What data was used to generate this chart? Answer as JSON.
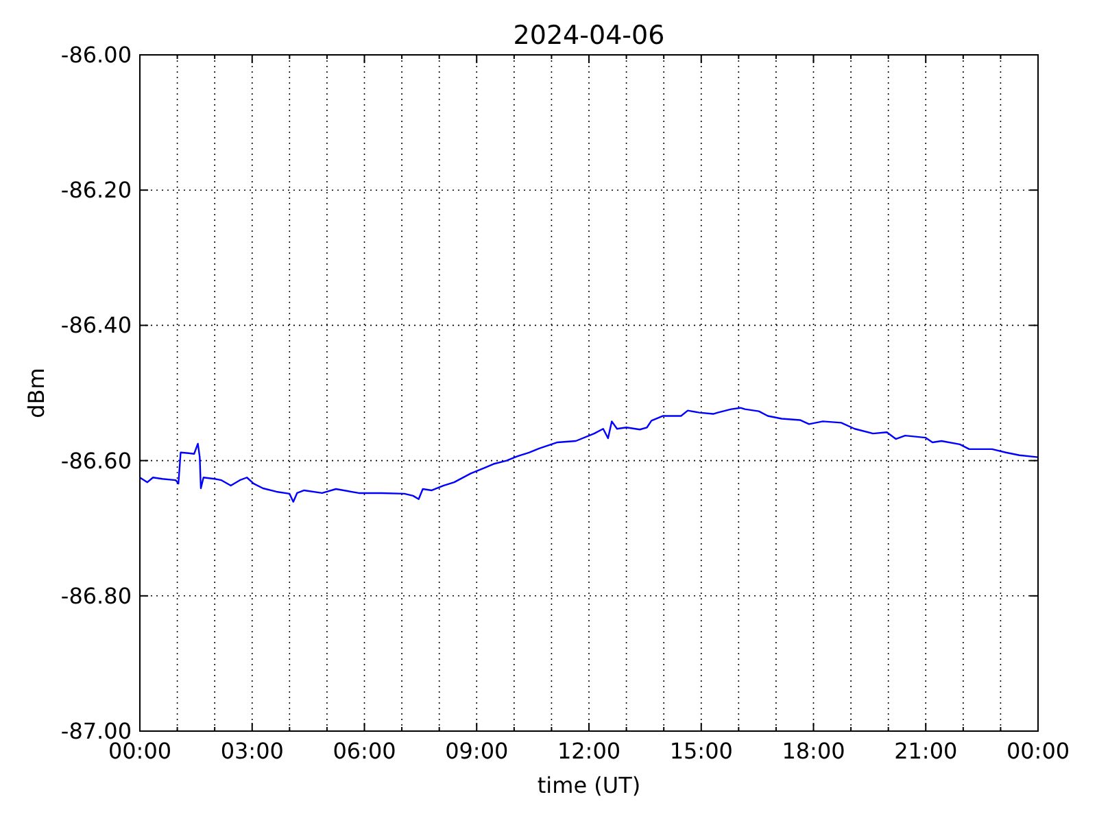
{
  "chart_data": {
    "type": "line",
    "title": "2024-04-06",
    "xlabel": "time (UT)",
    "ylabel": "dBm",
    "xlim": [
      0,
      24
    ],
    "ylim": [
      -87,
      -86
    ],
    "xticks": [
      {
        "value": 0,
        "label": "00:00"
      },
      {
        "value": 1,
        "label": null
      },
      {
        "value": 2,
        "label": null
      },
      {
        "value": 3,
        "label": "03:00"
      },
      {
        "value": 4,
        "label": null
      },
      {
        "value": 5,
        "label": null
      },
      {
        "value": 6,
        "label": "06:00"
      },
      {
        "value": 7,
        "label": null
      },
      {
        "value": 8,
        "label": null
      },
      {
        "value": 9,
        "label": "09:00"
      },
      {
        "value": 10,
        "label": null
      },
      {
        "value": 11,
        "label": null
      },
      {
        "value": 12,
        "label": "12:00"
      },
      {
        "value": 13,
        "label": null
      },
      {
        "value": 14,
        "label": null
      },
      {
        "value": 15,
        "label": "15:00"
      },
      {
        "value": 16,
        "label": null
      },
      {
        "value": 17,
        "label": null
      },
      {
        "value": 18,
        "label": "18:00"
      },
      {
        "value": 19,
        "label": null
      },
      {
        "value": 20,
        "label": null
      },
      {
        "value": 21,
        "label": "21:00"
      },
      {
        "value": 22,
        "label": null
      },
      {
        "value": 23,
        "label": null
      },
      {
        "value": 24,
        "label": "00:00"
      }
    ],
    "yticks": [
      {
        "value": -87,
        "label": "-87.00"
      },
      {
        "value": -86.8,
        "label": "-86.80"
      },
      {
        "value": -86.6,
        "label": "-86.60"
      },
      {
        "value": -86.4,
        "label": "-86.40"
      },
      {
        "value": -86.2,
        "label": "-86.20"
      },
      {
        "value": -86,
        "label": "-86.00"
      }
    ],
    "grid": true,
    "series": [
      {
        "color": "#0000ff",
        "x": [
          0,
          0.2,
          0.35,
          0.6,
          0.96,
          1.03,
          1.09,
          1.3,
          1.45,
          1.55,
          1.6,
          1.63,
          1.7,
          2.0,
          2.18,
          2.43,
          2.67,
          2.86,
          3.04,
          3.29,
          3.65,
          4.0,
          4.1,
          4.2,
          4.39,
          4.87,
          5.24,
          5.85,
          6.46,
          7.07,
          7.3,
          7.45,
          7.56,
          7.8,
          8.11,
          8.4,
          8.84,
          9.2,
          9.45,
          9.8,
          10.07,
          10.4,
          10.67,
          11.16,
          11.65,
          12.14,
          12.38,
          12.51,
          12.61,
          12.75,
          13.0,
          13.36,
          13.55,
          13.67,
          13.97,
          14.46,
          14.64,
          14.95,
          15.32,
          15.44,
          15.8,
          16.05,
          16.17,
          16.54,
          16.78,
          17.15,
          17.64,
          17.88,
          18.25,
          18.74,
          19.1,
          19.59,
          19.96,
          20.2,
          20.45,
          20.99,
          21.18,
          21.42,
          21.91,
          22.16,
          22.77,
          23.14,
          23.5,
          24.0
        ],
        "values": [
          -86.625,
          -86.632,
          -86.625,
          -86.627,
          -86.629,
          -86.634,
          -86.588,
          -86.589,
          -86.59,
          -86.575,
          -86.595,
          -86.641,
          -86.625,
          -86.627,
          -86.629,
          -86.637,
          -86.629,
          -86.625,
          -86.634,
          -86.641,
          -86.646,
          -86.649,
          -86.661,
          -86.648,
          -86.644,
          -86.648,
          -86.642,
          -86.648,
          -86.648,
          -86.649,
          -86.652,
          -86.657,
          -86.642,
          -86.644,
          -86.637,
          -86.632,
          -86.619,
          -86.611,
          -86.605,
          -86.6,
          -86.594,
          -86.588,
          -86.582,
          -86.573,
          -86.571,
          -86.56,
          -86.553,
          -86.567,
          -86.542,
          -86.553,
          -86.551,
          -86.554,
          -86.551,
          -86.541,
          -86.534,
          -86.534,
          -86.526,
          -86.529,
          -86.531,
          -86.529,
          -86.524,
          -86.522,
          -86.524,
          -86.527,
          -86.534,
          -86.538,
          -86.54,
          -86.546,
          -86.542,
          -86.544,
          -86.553,
          -86.56,
          -86.558,
          -86.568,
          -86.563,
          -86.566,
          -86.573,
          -86.571,
          -86.576,
          -86.583,
          -86.583,
          -86.588,
          -86.592,
          -86.595
        ]
      }
    ]
  }
}
